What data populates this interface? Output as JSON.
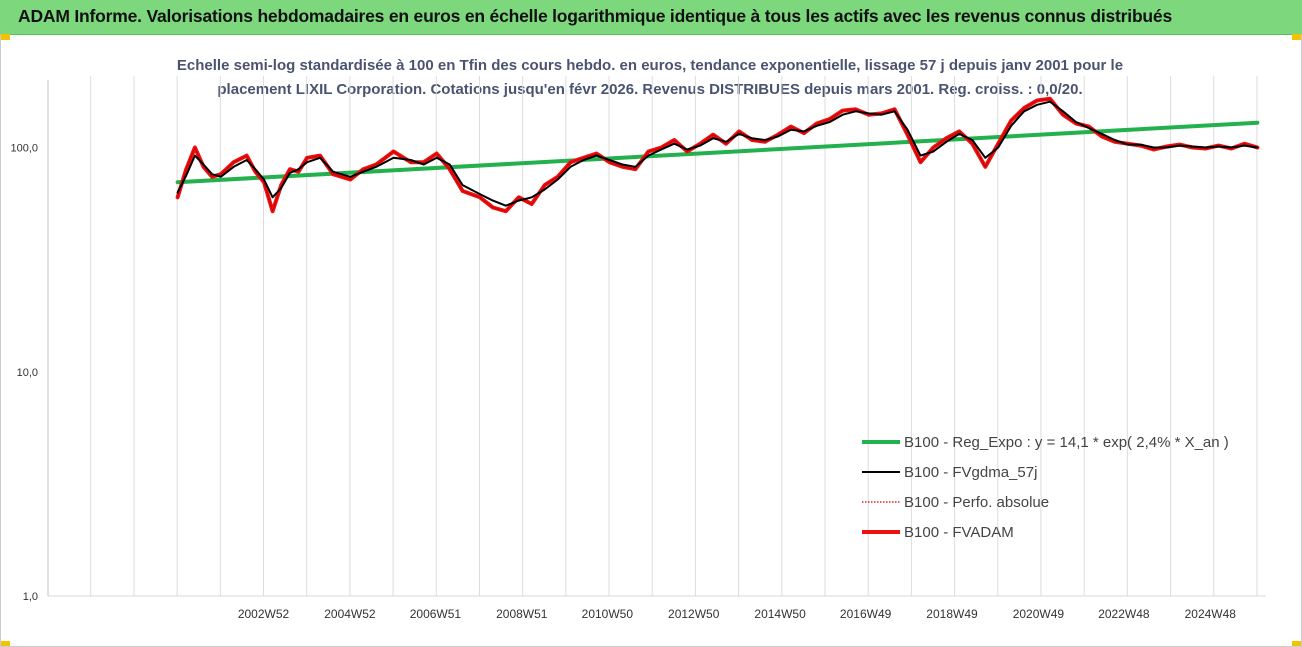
{
  "header": {
    "title": "ADAM Informe. Valorisations hebdomadaires en euros en échelle logarithmique identique à tous les actifs avec les revenus connus distribués"
  },
  "chart_data": {
    "type": "line",
    "title_lines": [
      "Echelle semi-log standardisée à 100 en Tfin des cours hebdo. en euros, tendance exponentielle, lissage 57 j depuis janv 2001 pour le",
      "placement LIXIL Corporation. Cotations jusqu'en févr 2026. Revenus DISTRIBUES depuis mars 2001. Reg. croiss. : 0,0/20."
    ],
    "y_scale": "log",
    "ylim": [
      1,
      200
    ],
    "y_ticks": [
      {
        "value": 1,
        "label": "1,0"
      },
      {
        "value": 10,
        "label": "10,0"
      },
      {
        "value": 100,
        "label": "100,0"
      }
    ],
    "xlim": [
      1998,
      2026.2
    ],
    "x_ticks": [
      {
        "value": 2002.99,
        "label": "2002W52"
      },
      {
        "value": 2004.99,
        "label": "2004W52"
      },
      {
        "value": 2006.97,
        "label": "2006W51"
      },
      {
        "value": 2008.97,
        "label": "2008W51"
      },
      {
        "value": 2010.95,
        "label": "2010W50"
      },
      {
        "value": 2012.95,
        "label": "2012W50"
      },
      {
        "value": 2014.95,
        "label": "2014W50"
      },
      {
        "value": 2016.93,
        "label": "2016W49"
      },
      {
        "value": 2018.93,
        "label": "2018W49"
      },
      {
        "value": 2020.93,
        "label": "2020W49"
      },
      {
        "value": 2022.91,
        "label": "2022W48"
      },
      {
        "value": 2024.91,
        "label": "2024W48"
      }
    ],
    "grid_x": true,
    "grid_y": false,
    "legend_position": "bottom-right",
    "series": [
      {
        "name": "B100 - Reg_Expo : y = 14,1 * exp( 2,4% *  X_an )",
        "color": "#22b14c",
        "style": "thick",
        "x": [
          2001.0,
          2026.0
        ],
        "values": [
          70,
          129
        ]
      },
      {
        "name": "B100 - FVgdma_57j",
        "color": "#000000",
        "style": "thin",
        "x": [
          2001.0,
          2001.2,
          2001.4,
          2001.6,
          2001.8,
          2002.0,
          2002.3,
          2002.6,
          2002.8,
          2003.0,
          2003.2,
          2003.4,
          2003.6,
          2003.8,
          2004.0,
          2004.3,
          2004.6,
          2005.0,
          2005.3,
          2005.6,
          2006.0,
          2006.4,
          2006.7,
          2007.0,
          2007.3,
          2007.6,
          2008.0,
          2008.3,
          2008.6,
          2008.9,
          2009.2,
          2009.5,
          2009.8,
          2010.1,
          2010.4,
          2010.7,
          2011.0,
          2011.3,
          2011.6,
          2011.9,
          2012.2,
          2012.5,
          2012.8,
          2013.1,
          2013.4,
          2013.7,
          2014.0,
          2014.3,
          2014.6,
          2014.9,
          2015.2,
          2015.5,
          2015.8,
          2016.1,
          2016.4,
          2016.7,
          2017.0,
          2017.3,
          2017.6,
          2017.9,
          2018.2,
          2018.5,
          2018.8,
          2019.1,
          2019.4,
          2019.7,
          2020.0,
          2020.3,
          2020.6,
          2020.9,
          2021.2,
          2021.5,
          2021.8,
          2022.1,
          2022.4,
          2022.7,
          2023.0,
          2023.3,
          2023.6,
          2023.9,
          2024.2,
          2024.5,
          2024.8,
          2025.1,
          2025.4,
          2025.7,
          2026.0
        ],
        "values": [
          63,
          75,
          92,
          84,
          76,
          74,
          82,
          88,
          80,
          72,
          60,
          66,
          77,
          80,
          86,
          90,
          78,
          74,
          78,
          82,
          90,
          88,
          84,
          90,
          84,
          68,
          62,
          58,
          55,
          58,
          60,
          65,
          72,
          82,
          88,
          92,
          88,
          84,
          82,
          92,
          98,
          104,
          98,
          102,
          110,
          106,
          115,
          110,
          108,
          112,
          120,
          118,
          125,
          130,
          140,
          145,
          142,
          140,
          145,
          120,
          92,
          96,
          106,
          115,
          108,
          90,
          100,
          125,
          145,
          155,
          160,
          145,
          130,
          122,
          115,
          108,
          103,
          103,
          100,
          100,
          102,
          101,
          100,
          101,
          100,
          102,
          100
        ]
      },
      {
        "name": "B100 - Perfo. absolue",
        "color": "#cc0000",
        "style": "dotted",
        "x": [
          2001.0,
          2001.2,
          2001.4,
          2001.6,
          2001.8,
          2002.0,
          2002.3,
          2002.6,
          2002.8,
          2003.0,
          2003.2,
          2003.4,
          2003.6,
          2003.8,
          2004.0,
          2004.3,
          2004.6,
          2005.0,
          2005.3,
          2005.6,
          2006.0,
          2006.4,
          2006.7,
          2007.0,
          2007.3,
          2007.6,
          2008.0,
          2008.3,
          2008.6,
          2008.9,
          2009.2,
          2009.5,
          2009.8,
          2010.1,
          2010.4,
          2010.7,
          2011.0,
          2011.3,
          2011.6,
          2011.9,
          2012.2,
          2012.5,
          2012.8,
          2013.1,
          2013.4,
          2013.7,
          2014.0,
          2014.3,
          2014.6,
          2014.9,
          2015.2,
          2015.5,
          2015.8,
          2016.1,
          2016.4,
          2016.7,
          2017.0,
          2017.3,
          2017.6,
          2017.9,
          2018.2,
          2018.5,
          2018.8,
          2019.1,
          2019.4,
          2019.7,
          2020.0,
          2020.3,
          2020.6,
          2020.9,
          2021.2,
          2021.5,
          2021.8,
          2022.1,
          2022.4,
          2022.7,
          2023.0,
          2023.3,
          2023.6,
          2023.9,
          2024.2,
          2024.5,
          2024.8,
          2025.1,
          2025.4,
          2025.7,
          2026.0
        ],
        "values": [
          60,
          80,
          100,
          82,
          74,
          76,
          86,
          92,
          78,
          70,
          52,
          68,
          80,
          78,
          90,
          92,
          76,
          72,
          80,
          84,
          96,
          86,
          86,
          94,
          80,
          64,
          60,
          54,
          52,
          60,
          56,
          68,
          74,
          86,
          90,
          94,
          86,
          82,
          80,
          96,
          100,
          108,
          96,
          104,
          114,
          104,
          118,
          108,
          106,
          114,
          124,
          116,
          128,
          134,
          146,
          148,
          140,
          142,
          148,
          114,
          86,
          100,
          110,
          118,
          104,
          82,
          104,
          132,
          150,
          162,
          165,
          140,
          128,
          124,
          112,
          106,
          104,
          102,
          98,
          101,
          103,
          100,
          99,
          102,
          99,
          104,
          100
        ]
      },
      {
        "name": "B100 - FVADAM",
        "color": "#ee1111",
        "style": "thick",
        "x": [
          2001.0,
          2001.2,
          2001.4,
          2001.6,
          2001.8,
          2002.0,
          2002.3,
          2002.6,
          2002.8,
          2003.0,
          2003.2,
          2003.4,
          2003.6,
          2003.8,
          2004.0,
          2004.3,
          2004.6,
          2005.0,
          2005.3,
          2005.6,
          2006.0,
          2006.4,
          2006.7,
          2007.0,
          2007.3,
          2007.6,
          2008.0,
          2008.3,
          2008.6,
          2008.9,
          2009.2,
          2009.5,
          2009.8,
          2010.1,
          2010.4,
          2010.7,
          2011.0,
          2011.3,
          2011.6,
          2011.9,
          2012.2,
          2012.5,
          2012.8,
          2013.1,
          2013.4,
          2013.7,
          2014.0,
          2014.3,
          2014.6,
          2014.9,
          2015.2,
          2015.5,
          2015.8,
          2016.1,
          2016.4,
          2016.7,
          2017.0,
          2017.3,
          2017.6,
          2017.9,
          2018.2,
          2018.5,
          2018.8,
          2019.1,
          2019.4,
          2019.7,
          2020.0,
          2020.3,
          2020.6,
          2020.9,
          2021.2,
          2021.5,
          2021.8,
          2022.1,
          2022.4,
          2022.7,
          2023.0,
          2023.3,
          2023.6,
          2023.9,
          2024.2,
          2024.5,
          2024.8,
          2025.1,
          2025.4,
          2025.7,
          2026.0
        ],
        "values": [
          60,
          80,
          100,
          82,
          74,
          76,
          86,
          92,
          78,
          70,
          52,
          68,
          80,
          78,
          90,
          92,
          76,
          72,
          80,
          84,
          96,
          86,
          86,
          94,
          80,
          64,
          60,
          54,
          52,
          60,
          56,
          68,
          74,
          86,
          90,
          94,
          86,
          82,
          80,
          96,
          100,
          108,
          96,
          104,
          114,
          104,
          118,
          108,
          106,
          114,
          124,
          116,
          128,
          134,
          146,
          148,
          140,
          142,
          148,
          114,
          86,
          100,
          110,
          118,
          104,
          82,
          104,
          132,
          150,
          162,
          165,
          140,
          128,
          124,
          112,
          106,
          104,
          102,
          98,
          101,
          103,
          100,
          99,
          102,
          99,
          104,
          100
        ]
      }
    ]
  }
}
